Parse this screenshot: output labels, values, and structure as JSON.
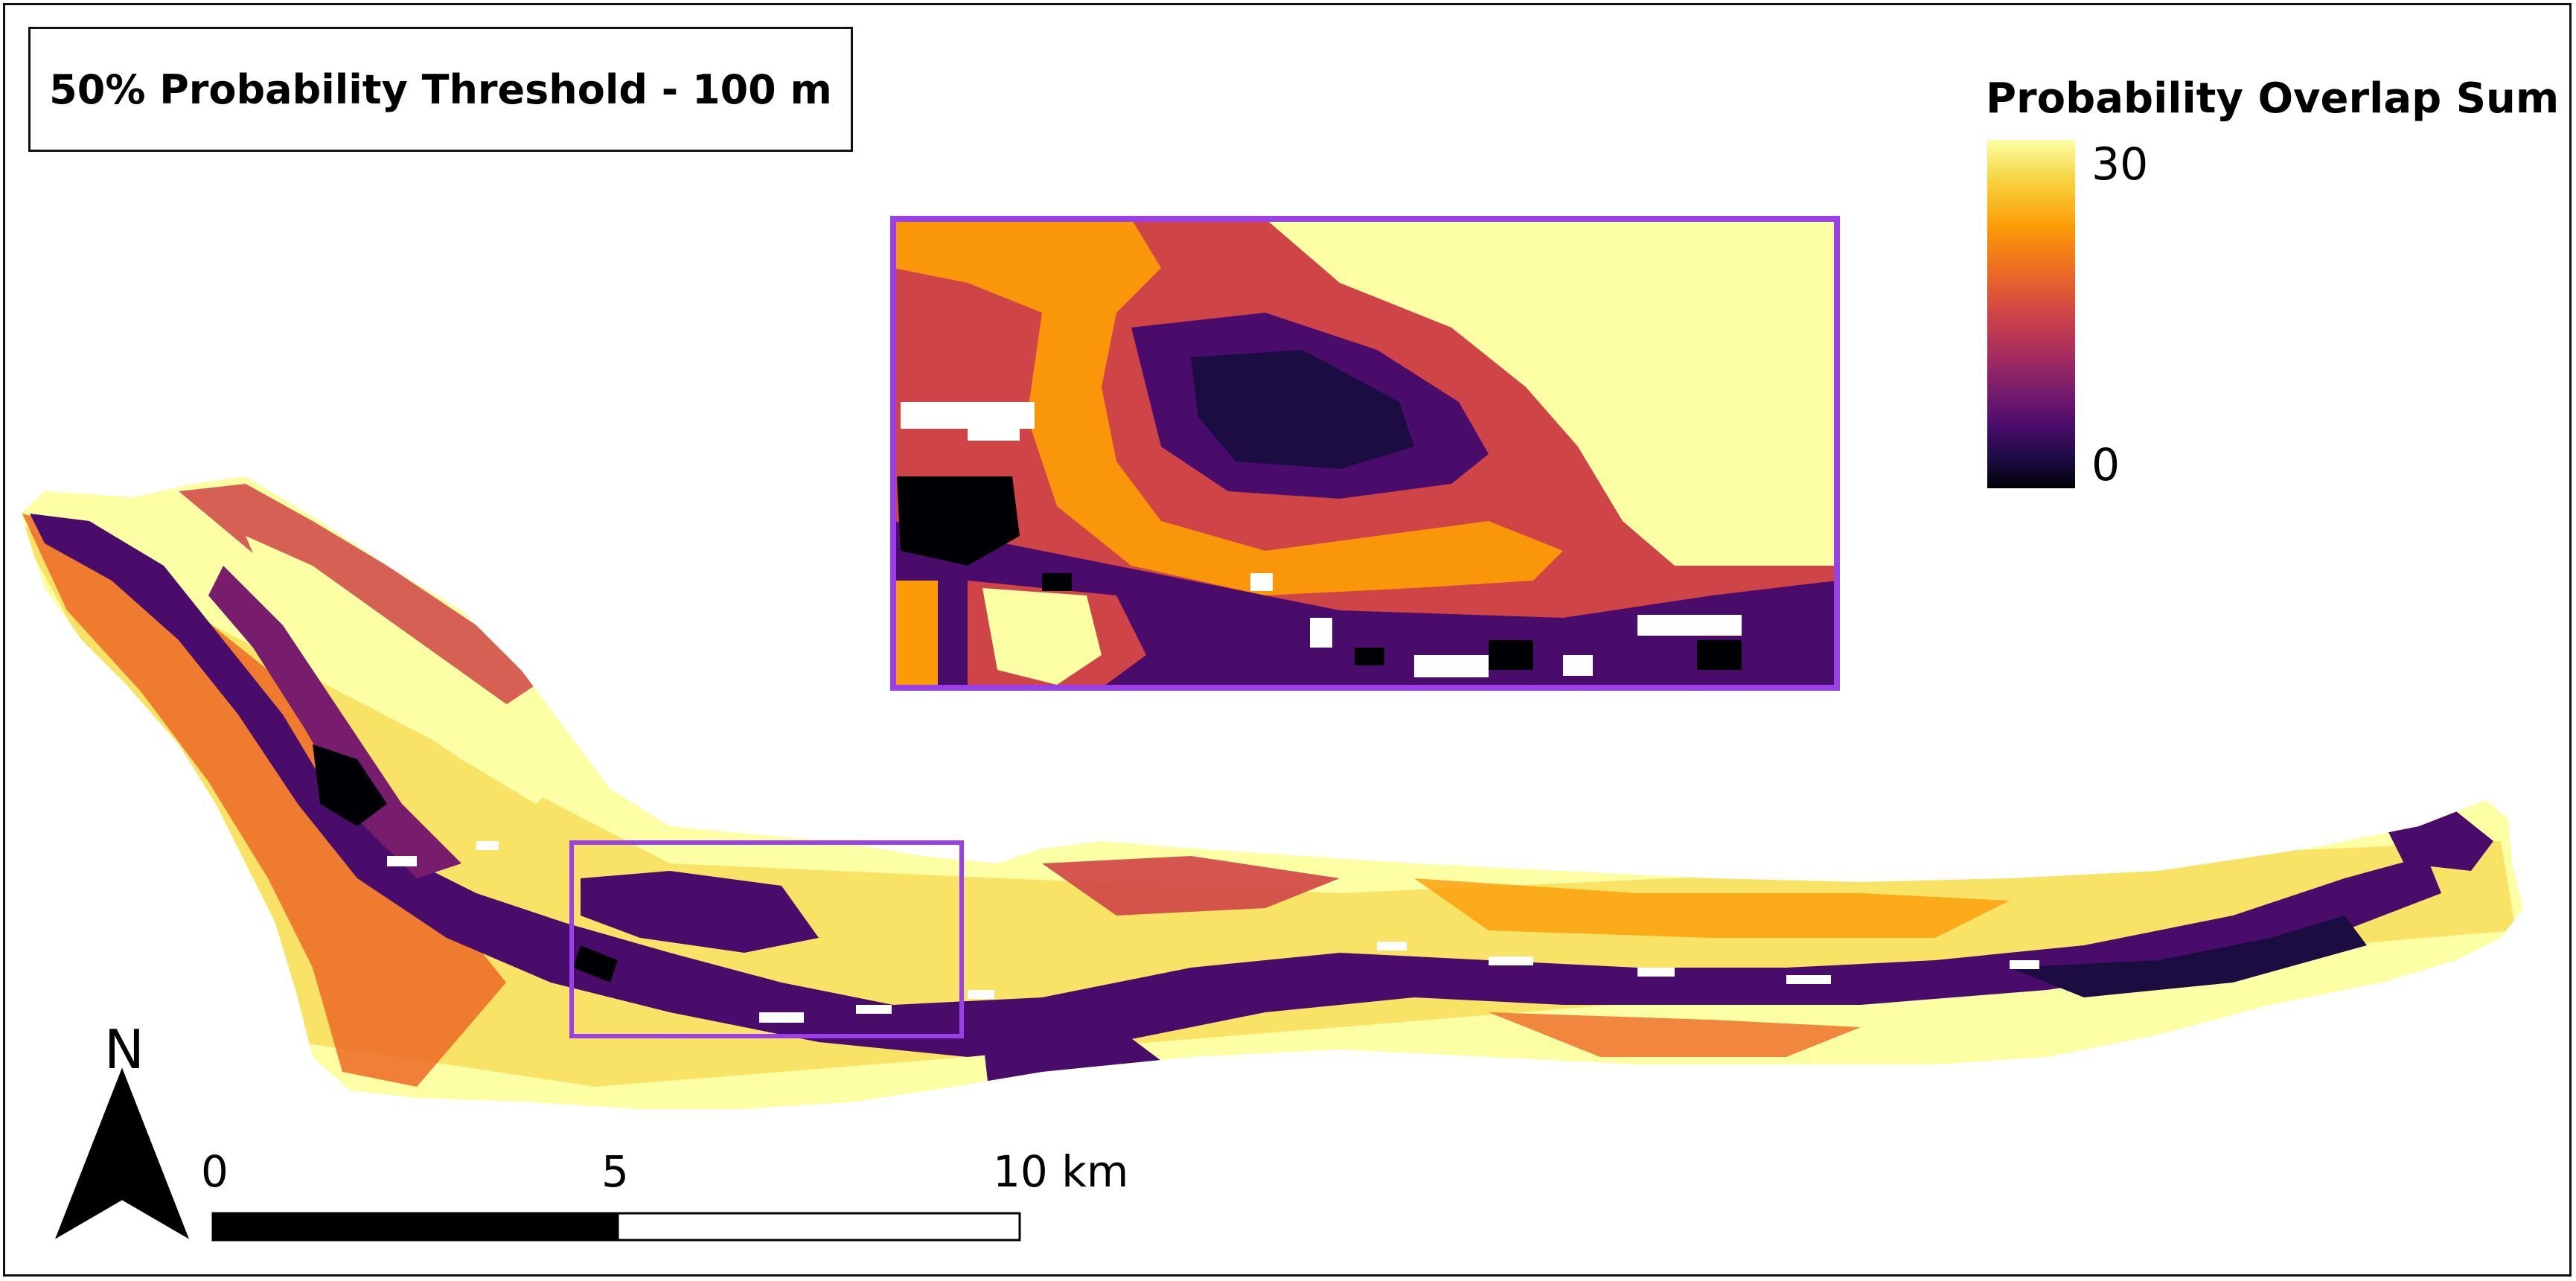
{
  "title": "50% Probability Threshold - 100 m",
  "legend": {
    "title": "Probability Overlap Sum",
    "max_label": "30",
    "min_label": "0",
    "colormap": "inferno",
    "colors": [
      "#fcffa4",
      "#f7d13d",
      "#fb9b06",
      "#ed6925",
      "#cf4446",
      "#a52c60",
      "#781c6d",
      "#4a0c6b",
      "#1b0c41",
      "#000004"
    ]
  },
  "scale_bar": {
    "labels": [
      "0",
      "5",
      "10 km"
    ]
  },
  "north_arrow": {
    "label": "N",
    "icon": "north-arrow-icon"
  },
  "inset": {
    "frame_color": "#9b3fe8"
  }
}
